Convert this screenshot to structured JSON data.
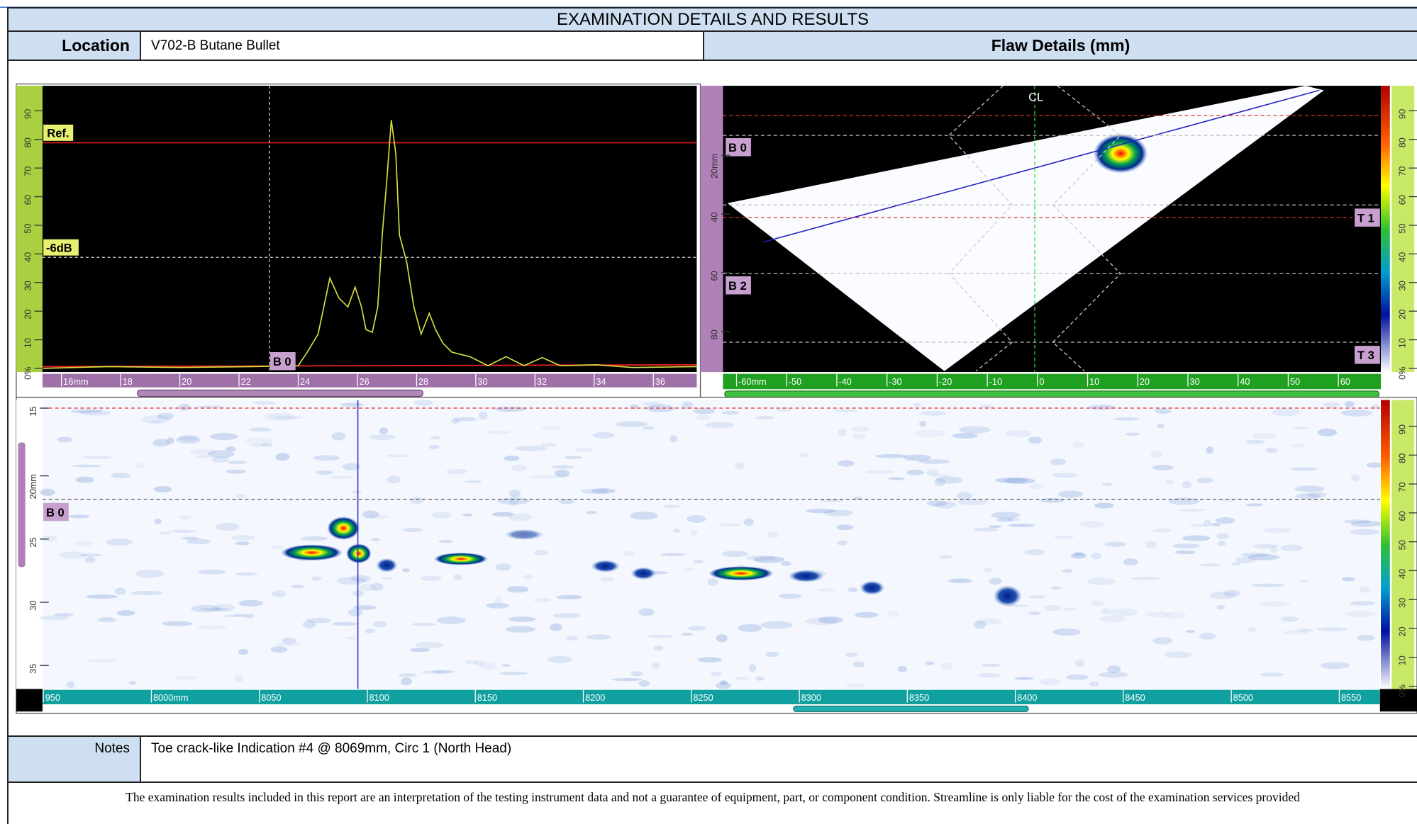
{
  "header": {
    "title": "EXAMINATION DETAILS AND RESULTS",
    "location_label": "Location",
    "location": "V702-B Butane Bullet",
    "flaw_details": "Flaw Details (mm)"
  },
  "a_scan": {
    "y_ticks": [
      "0%",
      "10",
      "20",
      "30",
      "40",
      "50",
      "60",
      "70",
      "80",
      "90"
    ],
    "x_ticks": [
      "16mm",
      "18",
      "20",
      "22",
      "24",
      "26",
      "28",
      "30",
      "32",
      "34",
      "36"
    ],
    "ref": "Ref.",
    "minus_6db": "-6dB",
    "gate": "B 0"
  },
  "s_scan": {
    "y_ticks": [
      "20mm",
      "40",
      "60",
      "80"
    ],
    "x_ticks": [
      "-60mm",
      "-50",
      "-40",
      "-30",
      "-20",
      "-10",
      "0",
      "10",
      "20",
      "30",
      "40",
      "50",
      "60"
    ],
    "centerline": "CL",
    "gate_b0": "B 0",
    "gate_b2": "B 2",
    "gate_t1": "T 1",
    "gate_t3": "T 3",
    "color_ticks": [
      "0%",
      "10",
      "20",
      "30",
      "40",
      "50",
      "60",
      "70",
      "80",
      "90"
    ]
  },
  "c_scan": {
    "y_ticks": [
      "15",
      "20mm",
      "25",
      "30",
      "35"
    ],
    "x_ticks": [
      "950",
      "8000mm",
      "8050",
      "8100",
      "8150",
      "8200",
      "8250",
      "8300",
      "8350",
      "8400",
      "8450",
      "8500",
      "8550"
    ],
    "gate": "B 0",
    "color_ticks": [
      "0%",
      "10",
      "20",
      "30",
      "40",
      "50",
      "60",
      "70",
      "80",
      "90"
    ]
  },
  "notes": {
    "label": "Notes",
    "text": "Toe crack-like Indication #4 @ 8069mm, Circ 1 (North Head)"
  },
  "footer": {
    "disclaimer": "The examination results included in this report are an interpretation of the testing instrument data and not a guarantee of equipment, part, or component condition. Streamline is only liable for the cost of the examination services provided"
  }
}
